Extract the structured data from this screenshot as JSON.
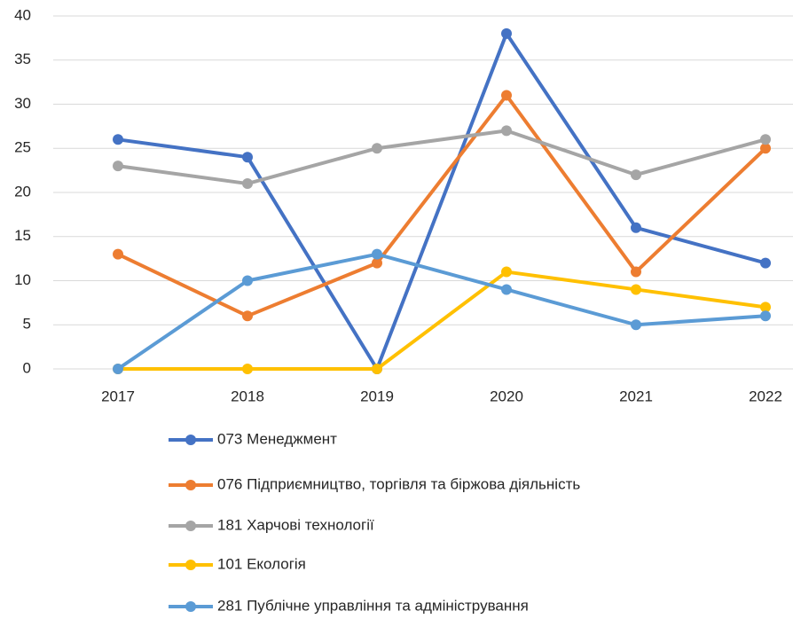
{
  "chart_data": {
    "type": "line",
    "categories": [
      "2017",
      "2018",
      "2019",
      "2020",
      "2021",
      "2022"
    ],
    "series": [
      {
        "name": "073 Менеджмент",
        "color": "#4472c4",
        "values": [
          26,
          24,
          0,
          38,
          16,
          12
        ]
      },
      {
        "name": "076 Підприємництво, торгівля та біржова діяльність",
        "color": "#ed7d31",
        "values": [
          13,
          6,
          12,
          31,
          11,
          25
        ]
      },
      {
        "name": "181 Харчові технології",
        "color": "#a5a5a5",
        "values": [
          23,
          21,
          25,
          27,
          22,
          26
        ]
      },
      {
        "name": "101 Екологія",
        "color": "#ffc000",
        "values": [
          0,
          0,
          0,
          11,
          9,
          7
        ]
      },
      {
        "name": "281 Публічне управління та адміністрування",
        "color": "#5b9bd5",
        "values": [
          0,
          10,
          13,
          9,
          5,
          6
        ]
      }
    ],
    "ylim": [
      0,
      40
    ],
    "yticks": [
      0,
      5,
      10,
      15,
      20,
      25,
      30,
      35,
      40
    ],
    "grid": true,
    "legend": "bottom"
  }
}
